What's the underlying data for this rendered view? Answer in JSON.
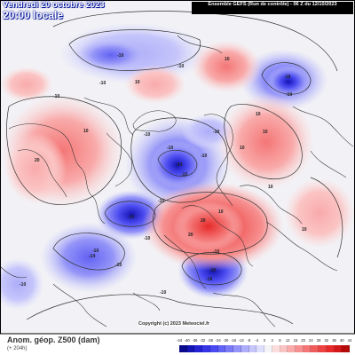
{
  "header": {
    "date_line": "Vendredi 20 octobre 2023",
    "time_line": "20:00 locale",
    "run_info": "Ensemble GEFS (Run de contrôle) - 06 Z du 12/10/2023"
  },
  "footer": {
    "title": "Anom. géop. Z500 (dam)",
    "subtitle": "(+ 204h)",
    "watermark": "Copyright (c) 2023 Meteociel.fr"
  },
  "colors": {
    "bg": "#ffffff",
    "frame": "#000000",
    "title_blue": "#1a2fbf",
    "neutral": "#f2f2f6",
    "coast": "#303030"
  },
  "colorbar": {
    "labels": [
      "-44",
      "-40",
      "-36",
      "-32",
      "-28",
      "-24",
      "-20",
      "-16",
      "-12",
      "-8",
      "-4",
      "0",
      "4",
      "8",
      "12",
      "16",
      "20",
      "24",
      "28",
      "32",
      "36",
      "40",
      "44"
    ],
    "colors": [
      "#0a0a8c",
      "#1414b4",
      "#2323d2",
      "#3535e6",
      "#4a4af0",
      "#6262f4",
      "#7a7af6",
      "#9494f8",
      "#adadfa",
      "#c6c6fb",
      "#dedefd",
      "#f4f4f8",
      "#fcdcdc",
      "#fbc4c4",
      "#f9aaaa",
      "#f79090",
      "#f47676",
      "#f05c5c",
      "#ec4242",
      "#e62a2a",
      "#d21818",
      "#b40a0a"
    ]
  },
  "map": {
    "contour_labels": [
      "-10",
      "-18",
      "-10",
      "10",
      "10",
      "-10",
      "-10",
      "-10",
      "10",
      "10",
      "-10",
      "-10",
      "20",
      "-10",
      "-10",
      "10",
      "-24",
      "-10",
      "-10",
      "-10",
      "-10",
      "10",
      "-10",
      "10",
      "20",
      "-10",
      "20",
      "-10",
      "-14",
      "-10",
      "10",
      "-10",
      "10",
      "-18",
      "-10"
    ]
  }
}
